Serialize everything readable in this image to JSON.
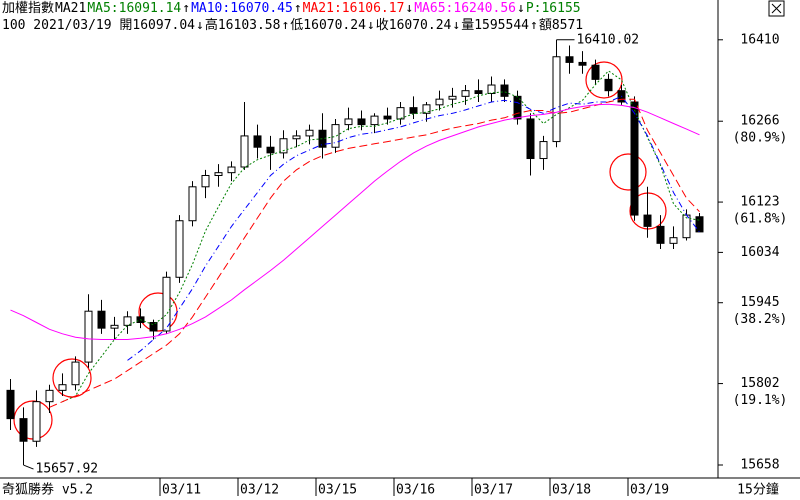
{
  "chart_data": {
    "type": "candlestick",
    "header": [
      {
        "text": "加權指數",
        "color": "#000000"
      },
      {
        "text": "MA21",
        "color": "#000000"
      },
      {
        "text": "MA5:16091.14",
        "color": "#008000"
      },
      {
        "text": "↑",
        "color": "#000000"
      },
      {
        "text": "MA10:16070.45",
        "color": "#0000ff"
      },
      {
        "text": "↑",
        "color": "#000000"
      },
      {
        "text": "MA21:16106.17",
        "color": "#ff0000"
      },
      {
        "text": "↓",
        "color": "#000000"
      },
      {
        "text": "MA65:16240.56",
        "color": "#ff00ff"
      },
      {
        "text": "↓",
        "color": "#000000"
      },
      {
        "text": "P:16155",
        "color": "#008000"
      }
    ],
    "subheader": [
      {
        "text": "100 2021/03/19 開16097.04"
      },
      {
        "text": "↓"
      },
      {
        "text": "高16103.58"
      },
      {
        "text": "↑"
      },
      {
        "text": "低16070.24"
      },
      {
        "text": "↓"
      },
      {
        "text": "收16070.24"
      },
      {
        "text": "↓"
      },
      {
        "text": "量1595544"
      },
      {
        "text": "↑"
      },
      {
        "text": "額8571"
      }
    ],
    "brand": "奇狐勝券 v5.2",
    "period": "15分鐘",
    "categories": [
      null,
      null,
      null,
      null,
      null,
      null,
      null,
      null,
      null,
      null,
      null,
      null,
      "03/11",
      null,
      null,
      null,
      null,
      null,
      "03/12",
      null,
      null,
      null,
      null,
      null,
      "03/15",
      null,
      null,
      null,
      null,
      null,
      "03/16",
      null,
      null,
      null,
      null,
      null,
      "03/17",
      null,
      null,
      null,
      null,
      null,
      "03/18",
      null,
      null,
      null,
      null,
      null,
      "03/19",
      null,
      null,
      null,
      null,
      null
    ],
    "open": [
      15790,
      15740,
      15700,
      15770,
      15790,
      15800,
      15840,
      15930,
      15900,
      15905,
      15920,
      15910,
      15895,
      15990,
      16090,
      16150,
      16170,
      16175,
      16185,
      16240,
      16220,
      16210,
      16235,
      16240,
      16250,
      16220,
      16260,
      16270,
      16260,
      16275,
      16270,
      16290,
      16280,
      16295,
      16305,
      16310,
      16320,
      16315,
      16330,
      16310,
      16270,
      16200,
      16230,
      16380,
      16370,
      16365,
      16340,
      16320,
      16300,
      16100,
      16080,
      16050,
      16060,
      16097.04
    ],
    "high": [
      15810,
      15760,
      15790,
      15800,
      15820,
      15850,
      15960,
      15950,
      15920,
      15930,
      15935,
      15915,
      16000,
      16100,
      16160,
      16180,
      16190,
      16195,
      16300,
      16260,
      16240,
      16250,
      16250,
      16260,
      16280,
      16270,
      16290,
      16285,
      16280,
      16290,
      16300,
      16310,
      16300,
      16320,
      16325,
      16330,
      16340,
      16345,
      16340,
      16320,
      16280,
      16240,
      16410.02,
      16400,
      16390,
      16375,
      16350,
      16330,
      16310,
      16150,
      16100,
      16080,
      16110,
      16103.58
    ],
    "low": [
      15720,
      15657.92,
      15690,
      15750,
      15780,
      15790,
      15830,
      15890,
      15880,
      15890,
      15900,
      15880,
      15890,
      15980,
      16080,
      16130,
      16150,
      16160,
      16180,
      16200,
      16180,
      16200,
      16220,
      16225,
      16200,
      16210,
      16250,
      16250,
      16245,
      16260,
      16260,
      16270,
      16265,
      16285,
      16290,
      16295,
      16300,
      16300,
      16300,
      16260,
      16170,
      16180,
      16220,
      16350,
      16350,
      16330,
      16310,
      16295,
      16090,
      16060,
      16040,
      16040,
      16055,
      16070.24
    ],
    "close": [
      15740,
      15700,
      15770,
      15790,
      15800,
      15840,
      15930,
      15900,
      15905,
      15920,
      15910,
      15895,
      15990,
      16090,
      16150,
      16170,
      16175,
      16185,
      16240,
      16220,
      16210,
      16235,
      16240,
      16250,
      16220,
      16260,
      16270,
      16260,
      16275,
      16270,
      16290,
      16280,
      16295,
      16305,
      16310,
      16320,
      16315,
      16330,
      16310,
      16270,
      16200,
      16230,
      16380,
      16370,
      16365,
      16340,
      16320,
      16300,
      16100,
      16080,
      16050,
      16060,
      16100,
      16070.24
    ],
    "up_color": "#ffffff",
    "down_color": "#000000",
    "candle_outline": "#000000",
    "lines": [
      {
        "color": "#008000",
        "style": "dotted",
        "values": [
          null,
          null,
          null,
          null,
          15770,
          15780,
          15820,
          15850,
          15880,
          15905,
          15915,
          15906,
          15924,
          15963,
          16013,
          16072,
          16115,
          16156,
          16184,
          16198,
          16206,
          16214,
          16221,
          16233,
          16235,
          16239,
          16253,
          16257,
          16257,
          16263,
          16271,
          16279,
          16282,
          16288,
          16296,
          16302,
          16311,
          16316,
          16318,
          16309,
          16285,
          16262,
          16278,
          16290,
          16303,
          16331,
          16355,
          16339,
          16286,
          16237,
          16188,
          16120,
          16095,
          16091
        ]
      },
      {
        "color": "#0000ff",
        "style": "dashdot",
        "values": [
          null,
          null,
          null,
          null,
          null,
          null,
          null,
          null,
          null,
          15843,
          15860,
          15880,
          15900,
          15935,
          15970,
          16010,
          16045,
          16080,
          16110,
          16140,
          16170,
          16190,
          16205,
          16215,
          16225,
          16228,
          16237,
          16243,
          16246,
          16251,
          16256,
          16263,
          16270,
          16276,
          16280,
          16286,
          16293,
          16300,
          16303,
          16299,
          16287,
          16280,
          16290,
          16298,
          16296,
          16300,
          16300,
          16310,
          16280,
          16240,
          16190,
          16140,
          16100,
          16070
        ]
      },
      {
        "color": "#ff0000",
        "style": "dashed",
        "values": [
          null,
          null,
          null,
          15760,
          15770,
          15780,
          15790,
          15800,
          15810,
          15825,
          15840,
          15855,
          15870,
          15890,
          15920,
          15955,
          15990,
          16025,
          16060,
          16095,
          16130,
          16160,
          16180,
          16195,
          16205,
          16212,
          16218,
          16222,
          16226,
          16230,
          16234,
          16238,
          16242,
          16248,
          16254,
          16258,
          16262,
          16268,
          16272,
          16280,
          16285,
          16285,
          16280,
          16282,
          16288,
          16294,
          16300,
          16305,
          16305,
          16250,
          16210,
          16170,
          16130,
          16106
        ]
      },
      {
        "color": "#ff00ff",
        "style": "solid",
        "values": [
          15932,
          15922,
          15910,
          15898,
          15890,
          15884,
          15881,
          15880,
          15880,
          15880,
          15882,
          15885,
          15890,
          15898,
          15908,
          15920,
          15935,
          15950,
          15968,
          15985,
          16002,
          16020,
          16040,
          16060,
          16080,
          16100,
          16120,
          16140,
          16160,
          16178,
          16195,
          16210,
          16222,
          16232,
          16240,
          16248,
          16256,
          16262,
          16268,
          16272,
          16276,
          16278,
          16282,
          16288,
          16292,
          16295,
          16296,
          16294,
          16290,
          16282,
          16272,
          16262,
          16252,
          16242
        ]
      }
    ],
    "ylim": [
      15635,
      16445
    ],
    "yticks": [
      16410,
      16266,
      16123,
      16034,
      15945,
      15802,
      15658
    ],
    "ytick_notes": [
      {
        "value": 16266,
        "label": "(80.9%)"
      },
      {
        "value": 16123,
        "label": "(61.8%)"
      },
      {
        "value": 15945,
        "label": "(38.2%)"
      },
      {
        "value": 15802,
        "label": "(19.1%)"
      }
    ]
  }
}
